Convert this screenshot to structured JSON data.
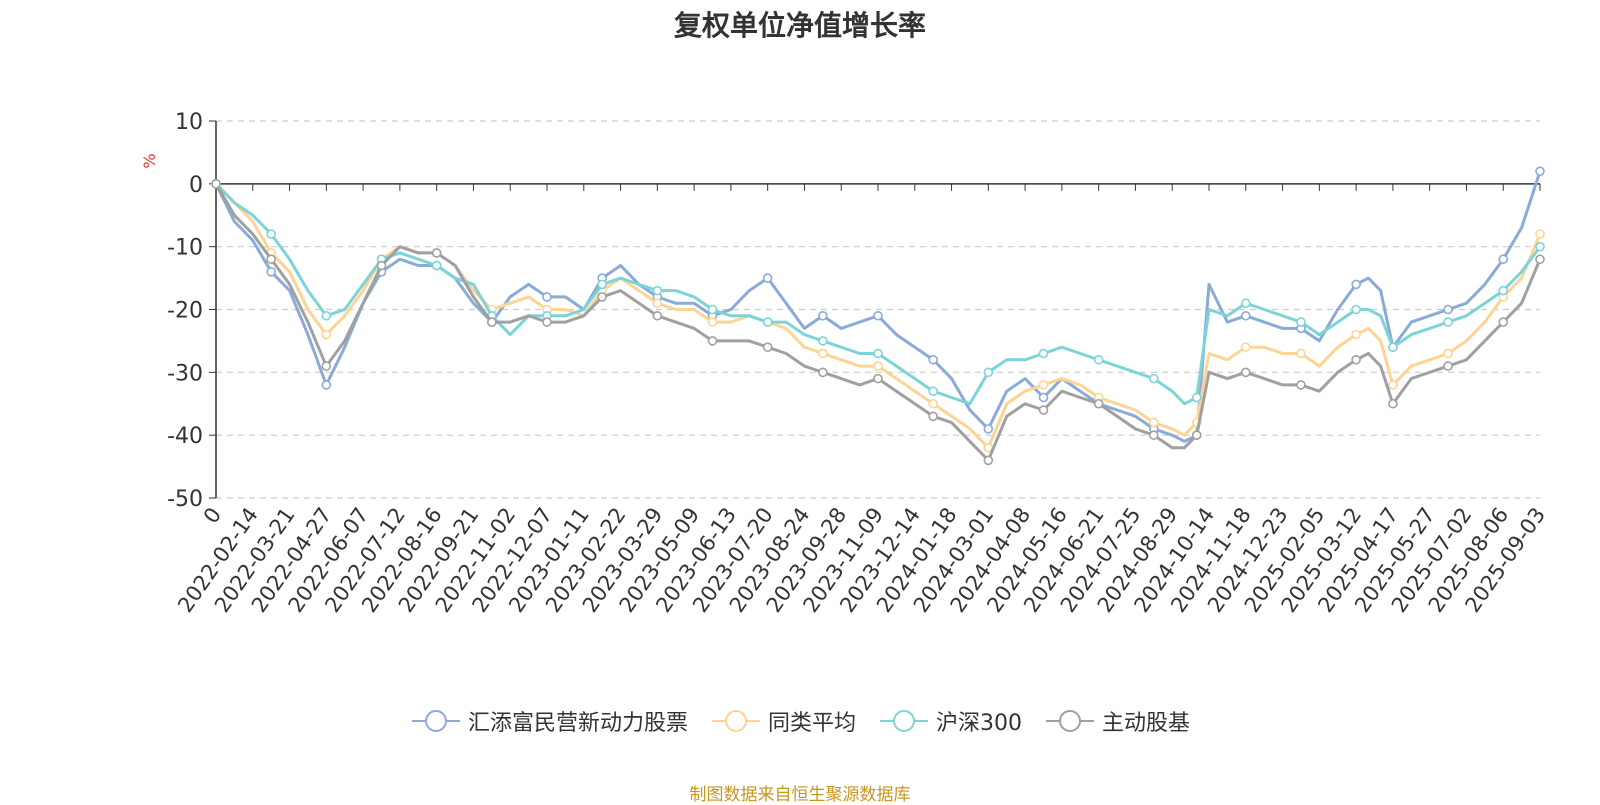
{
  "chart_data": {
    "type": "line",
    "title": "复权单位净值增长率",
    "ylabel": "%",
    "ylim": [
      -50,
      10
    ],
    "yticks": [
      10,
      0,
      -10,
      -20,
      -30,
      -40,
      -50
    ],
    "grid": true,
    "legend_position": "bottom",
    "x_ticks": [
      "0",
      "2022-02-14",
      "2022-03-21",
      "2022-04-27",
      "2022-06-07",
      "2022-07-12",
      "2022-08-16",
      "2022-09-21",
      "2022-11-02",
      "2022-12-07",
      "2023-01-11",
      "2023-02-22",
      "2023-03-29",
      "2023-05-09",
      "2023-06-13",
      "2023-07-20",
      "2023-08-24",
      "2023-09-28",
      "2023-11-09",
      "2023-12-14",
      "2024-01-18",
      "2024-03-01",
      "2024-04-08",
      "2024-05-16",
      "2024-06-21",
      "2024-07-25",
      "2024-08-29",
      "2024-10-14",
      "2024-11-18",
      "2024-12-23",
      "2025-02-05",
      "2025-03-12",
      "2025-04-17",
      "2025-05-27",
      "2025-07-02",
      "2025-08-06",
      "2025-09-03"
    ],
    "x": [
      "0",
      "2022-01-24",
      "2022-02-14",
      "2022-03-07",
      "2022-03-21",
      "2022-04-11",
      "2022-04-27",
      "2022-05-17",
      "2022-06-07",
      "2022-06-24",
      "2022-07-12",
      "2022-08-01",
      "2022-08-16",
      "2022-09-05",
      "2022-09-21",
      "2022-10-17",
      "2022-11-02",
      "2022-11-21",
      "2022-12-07",
      "2022-12-22",
      "2023-01-11",
      "2023-02-06",
      "2023-02-22",
      "2023-03-10",
      "2023-03-29",
      "2023-04-19",
      "2023-05-09",
      "2023-05-26",
      "2023-06-13",
      "2023-07-04",
      "2023-07-20",
      "2023-08-07",
      "2023-08-24",
      "2023-09-11",
      "2023-09-28",
      "2023-10-24",
      "2023-11-09",
      "2023-11-27",
      "2023-12-14",
      "2024-01-02",
      "2024-01-18",
      "2024-02-06",
      "2024-03-01",
      "2024-03-20",
      "2024-04-08",
      "2024-04-29",
      "2024-05-16",
      "2024-06-04",
      "2024-06-21",
      "2024-07-09",
      "2024-07-25",
      "2024-08-12",
      "2024-08-29",
      "2024-09-20",
      "2024-09-30",
      "2024-10-14",
      "2024-11-01",
      "2024-11-18",
      "2024-12-05",
      "2024-12-23",
      "2025-01-14",
      "2025-02-05",
      "2025-02-24",
      "2025-03-12",
      "2025-03-31",
      "2025-04-08",
      "2025-04-17",
      "2025-05-09",
      "2025-05-27",
      "2025-06-16",
      "2025-07-02",
      "2025-07-18",
      "2025-08-06",
      "2025-08-20",
      "2025-09-03"
    ],
    "series": [
      {
        "name": "汇添富民营新动力股票",
        "color": "#8aaad8",
        "values": [
          0,
          -6,
          -9,
          -14,
          -17,
          -24,
          -32,
          -26,
          -19,
          -14,
          -12,
          -13,
          -13,
          -15,
          -19,
          -22,
          -18,
          -16,
          -18,
          -18,
          -20,
          -15,
          -13,
          -16,
          -18,
          -19,
          -19,
          -21,
          -20,
          -17,
          -15,
          -19,
          -23,
          -21,
          -23,
          -22,
          -21,
          -24,
          -26,
          -28,
          -31,
          -36,
          -39,
          -33,
          -31,
          -34,
          -31,
          -33,
          -35,
          -36,
          -37,
          -39,
          -40,
          -41,
          -40,
          -16,
          -22,
          -21,
          -22,
          -23,
          -23,
          -25,
          -20,
          -16,
          -15,
          -17,
          -26,
          -22,
          -21,
          -20,
          -19,
          -16,
          -12,
          -7,
          2
        ]
      },
      {
        "name": "同类平均",
        "color": "#fdd493",
        "values": [
          0,
          -3,
          -6,
          -11,
          -14,
          -20,
          -24,
          -21,
          -17,
          -12,
          -10,
          -11,
          -11,
          -13,
          -17,
          -20,
          -19,
          -18,
          -20,
          -20,
          -21,
          -17,
          -15,
          -17,
          -19,
          -20,
          -20,
          -22,
          -22,
          -21,
          -22,
          -23,
          -26,
          -27,
          -28,
          -29,
          -29,
          -31,
          -33,
          -35,
          -37,
          -39,
          -42,
          -35,
          -33,
          -32,
          -31,
          -32,
          -34,
          -35,
          -36,
          -38,
          -39,
          -40,
          -38,
          -27,
          -28,
          -26,
          -26,
          -27,
          -27,
          -29,
          -26,
          -24,
          -23,
          -25,
          -32,
          -29,
          -28,
          -27,
          -25,
          -22,
          -18,
          -15,
          -8
        ]
      },
      {
        "name": "沪深300",
        "color": "#7dd4d8",
        "values": [
          0,
          -3,
          -5,
          -8,
          -12,
          -17,
          -21,
          -20,
          -16,
          -12,
          -11,
          -12,
          -13,
          -15,
          -16,
          -21,
          -24,
          -21,
          -21,
          -21,
          -20,
          -16,
          -15,
          -16,
          -17,
          -17,
          -18,
          -20,
          -21,
          -21,
          -22,
          -22,
          -24,
          -25,
          -26,
          -27,
          -27,
          -29,
          -31,
          -33,
          -34,
          -35,
          -30,
          -28,
          -28,
          -27,
          -26,
          -27,
          -28,
          -29,
          -30,
          -31,
          -33,
          -35,
          -34,
          -20,
          -21,
          -19,
          -20,
          -21,
          -22,
          -24,
          -22,
          -20,
          -20,
          -21,
          -26,
          -24,
          -23,
          -22,
          -21,
          -19,
          -17,
          -14,
          -10
        ]
      },
      {
        "name": "主动股基",
        "color": "#a0a0a0",
        "values": [
          0,
          -5,
          -8,
          -12,
          -16,
          -22,
          -29,
          -25,
          -19,
          -13,
          -10,
          -11,
          -11,
          -13,
          -18,
          -22,
          -22,
          -21,
          -22,
          -22,
          -21,
          -18,
          -17,
          -19,
          -21,
          -22,
          -23,
          -25,
          -25,
          -25,
          -26,
          -27,
          -29,
          -30,
          -31,
          -32,
          -31,
          -33,
          -35,
          -37,
          -38,
          -41,
          -44,
          -37,
          -35,
          -36,
          -33,
          -34,
          -35,
          -37,
          -39,
          -40,
          -42,
          -42,
          -40,
          -30,
          -31,
          -30,
          -31,
          -32,
          -32,
          -33,
          -30,
          -28,
          -27,
          -29,
          -35,
          -31,
          -30,
          -29,
          -28,
          -25,
          -22,
          -19,
          -12
        ]
      }
    ],
    "footer": "制图数据来自恒生聚源数据库"
  }
}
